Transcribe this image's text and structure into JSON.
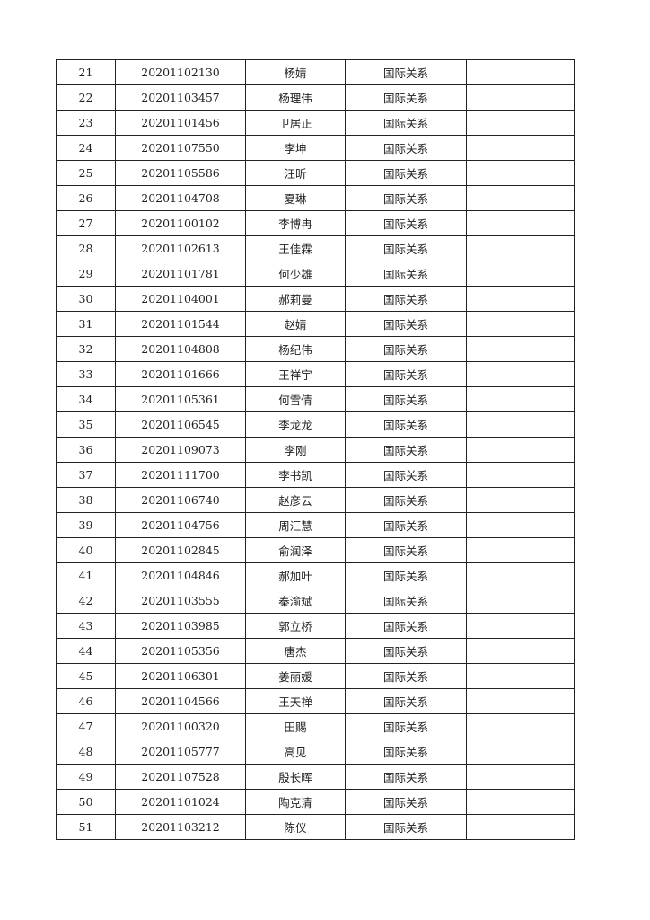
{
  "rows": [
    [
      "21",
      "20201102130",
      "杨婧",
      "国际关系",
      ""
    ],
    [
      "22",
      "20201103457",
      "杨理伟",
      "国际关系",
      ""
    ],
    [
      "23",
      "20201101456",
      "卫居正",
      "国际关系",
      ""
    ],
    [
      "24",
      "20201107550",
      "李坤",
      "国际关系",
      ""
    ],
    [
      "25",
      "20201105586",
      "汪昕",
      "国际关系",
      ""
    ],
    [
      "26",
      "20201104708",
      "夏琳",
      "国际关系",
      ""
    ],
    [
      "27",
      "20201100102",
      "李博冉",
      "国际关系",
      ""
    ],
    [
      "28",
      "20201102613",
      "王佳霖",
      "国际关系",
      ""
    ],
    [
      "29",
      "20201101781",
      "何少雄",
      "国际关系",
      ""
    ],
    [
      "30",
      "20201104001",
      "郝莉曼",
      "国际关系",
      ""
    ],
    [
      "31",
      "20201101544",
      "赵婧",
      "国际关系",
      ""
    ],
    [
      "32",
      "20201104808",
      "杨纪伟",
      "国际关系",
      ""
    ],
    [
      "33",
      "20201101666",
      "王祥宇",
      "国际关系",
      ""
    ],
    [
      "34",
      "20201105361",
      "何雪倩",
      "国际关系",
      ""
    ],
    [
      "35",
      "20201106545",
      "李龙龙",
      "国际关系",
      ""
    ],
    [
      "36",
      "20201109073",
      "李刚",
      "国际关系",
      ""
    ],
    [
      "37",
      "20201111700",
      "李书凯",
      "国际关系",
      ""
    ],
    [
      "38",
      "20201106740",
      "赵彦云",
      "国际关系",
      ""
    ],
    [
      "39",
      "20201104756",
      "周汇慧",
      "国际关系",
      ""
    ],
    [
      "40",
      "20201102845",
      "俞润泽",
      "国际关系",
      ""
    ],
    [
      "41",
      "20201104846",
      "郝加叶",
      "国际关系",
      ""
    ],
    [
      "42",
      "20201103555",
      "秦渝斌",
      "国际关系",
      ""
    ],
    [
      "43",
      "20201103985",
      "郭立桥",
      "国际关系",
      ""
    ],
    [
      "44",
      "20201105356",
      "唐杰",
      "国际关系",
      ""
    ],
    [
      "45",
      "20201106301",
      "姜丽媛",
      "国际关系",
      ""
    ],
    [
      "46",
      "20201104566",
      "王天禅",
      "国际关系",
      ""
    ],
    [
      "47",
      "20201100320",
      "田赐",
      "国际关系",
      ""
    ],
    [
      "48",
      "20201105777",
      "高见",
      "国际关系",
      ""
    ],
    [
      "49",
      "20201107528",
      "殷长晖",
      "国际关系",
      ""
    ],
    [
      "50",
      "20201101024",
      "陶克清",
      "国际关系",
      ""
    ],
    [
      "51",
      "20201103212",
      "陈仪",
      "国际关系",
      ""
    ]
  ]
}
